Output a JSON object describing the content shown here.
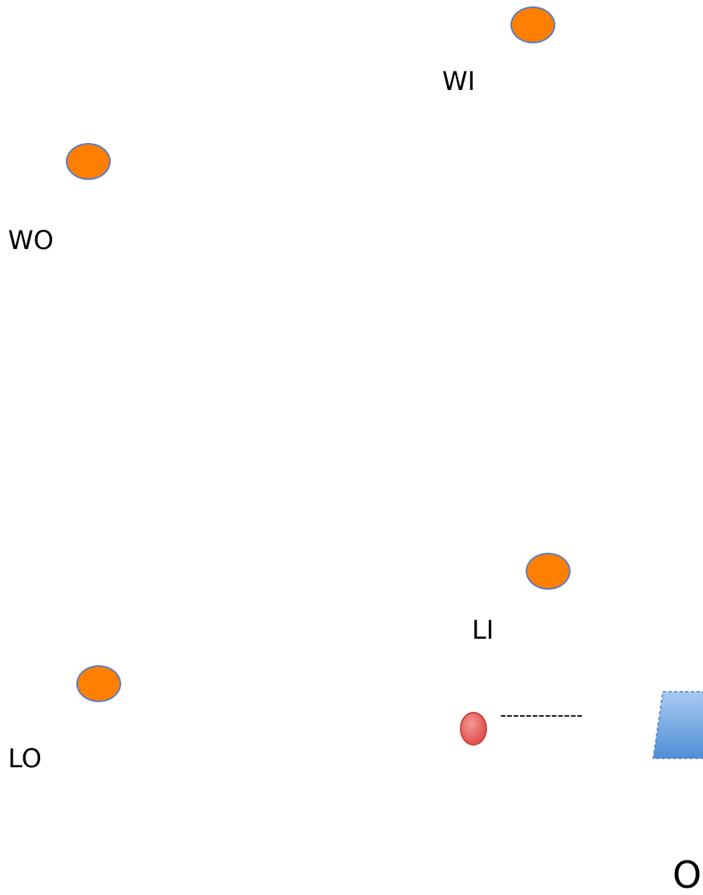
{
  "labels": {
    "wi": "WI",
    "wo": "WO",
    "li": "LI",
    "lo": "LO",
    "bottom_right": "O",
    "dashes": "-------------"
  },
  "colors": {
    "marker_fill": "#ff7f00",
    "marker_stroke": "#5b7fc4",
    "red_dot_fill": "#e55d59",
    "trapezoid_fill": "#5b9bd5"
  }
}
